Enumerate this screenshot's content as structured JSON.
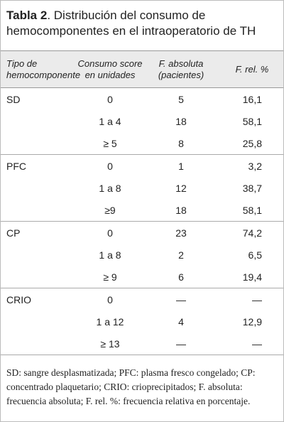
{
  "header": {
    "label": "Tabla 2",
    "title": ". Distribución del consumo de hemocomponentes en el intraoperatorio de TH"
  },
  "table": {
    "columns": [
      "Tipo de hemocomponente",
      "Consumo score en unidades",
      "F. absoluta (pacientes)",
      "F. rel. %"
    ],
    "groups": [
      {
        "name": "SD",
        "rows": [
          [
            "0",
            "5",
            "16,1"
          ],
          [
            "1 a 4",
            "18",
            "58,1"
          ],
          [
            "≥ 5",
            "8",
            "25,8"
          ]
        ]
      },
      {
        "name": "PFC",
        "rows": [
          [
            "0",
            "1",
            "3,2"
          ],
          [
            "1 a 8",
            "12",
            "38,7"
          ],
          [
            "≥9",
            "18",
            "58,1"
          ]
        ]
      },
      {
        "name": "CP",
        "rows": [
          [
            "0",
            "23",
            "74,2"
          ],
          [
            "1 a 8",
            "2",
            "6,5"
          ],
          [
            "≥ 9",
            "6",
            "19,4"
          ]
        ]
      },
      {
        "name": "CRIO",
        "rows": [
          [
            "0",
            "—",
            "—"
          ],
          [
            "1 a 12",
            "4",
            "12,9"
          ],
          [
            "≥ 13",
            "—",
            "—"
          ]
        ]
      }
    ]
  },
  "footnote": "SD: sangre desplasmatizada; PFC: plasma fresco congelado; CP: concentrado plaquetario; CRIO: crioprecipitados; F. absoluta: frecuencia absoluta; F. rel. %: frecuencia relativa en porcentaje."
}
